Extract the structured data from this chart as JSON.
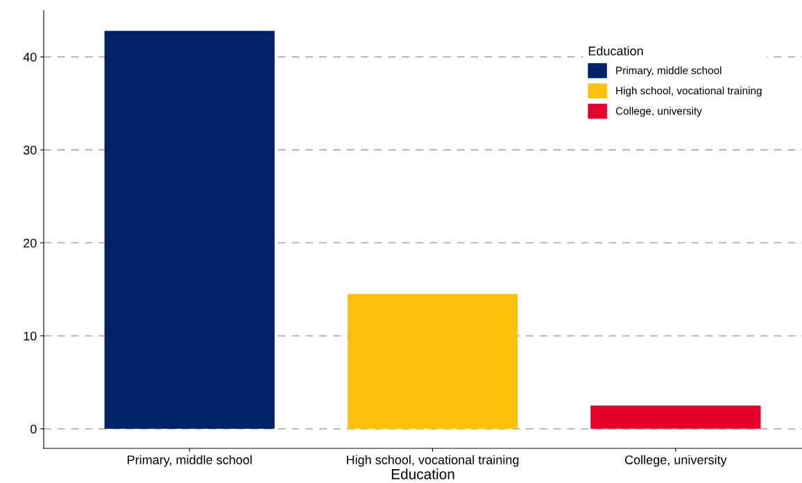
{
  "chart_data": {
    "type": "bar",
    "xlabel": "Education",
    "legend_title": "Education",
    "categories": [
      "Primary, middle school",
      "High school, vocational training",
      "College, university"
    ],
    "series": [
      {
        "name": "Primary, middle school",
        "color": "#002266",
        "values": [
          42.8,
          null,
          null
        ]
      },
      {
        "name": "High school, vocational training",
        "color": "#fcc00d",
        "values": [
          null,
          14.5,
          null
        ]
      },
      {
        "name": "College, university",
        "color": "#e4002b",
        "values": [
          null,
          null,
          2.5
        ]
      }
    ],
    "ylim": [
      -2.1,
      45
    ],
    "yticks": [
      0,
      10,
      20,
      30,
      40
    ],
    "grid": "y",
    "legend": "top right"
  }
}
